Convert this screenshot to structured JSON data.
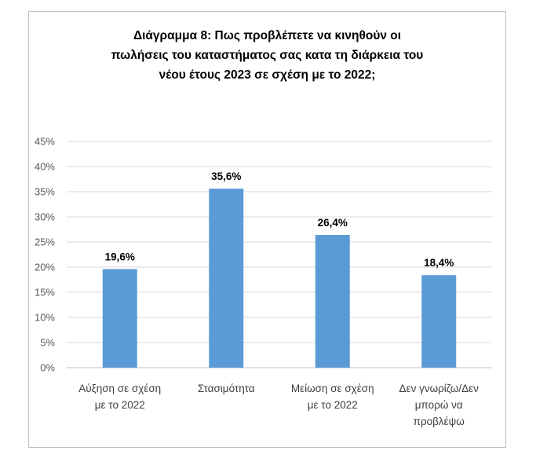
{
  "chart_data": {
    "type": "bar",
    "title_lines": [
      "Διάγραμμα 8: Πως προβλέπετε να κινηθούν οι",
      "πωλήσεις του καταστήματος σας κατα τη διάρκεια του",
      "νέου έτους 2023 σε σχέση με το 2022;"
    ],
    "categories": [
      [
        "Αύξηση σε σχέση",
        "με το 2022"
      ],
      [
        "Στασιμότητα"
      ],
      [
        "Μείωση σε σχέση",
        "με το 2022"
      ],
      [
        "Δεν γνωρίζω/Δεν",
        "μπορώ να",
        "προβλέψω"
      ]
    ],
    "values": [
      19.6,
      35.6,
      26.4,
      18.4
    ],
    "data_labels": [
      "19,6%",
      "35,6%",
      "26,4%",
      "18,4%"
    ],
    "y_ticks": [
      "0%",
      "5%",
      "10%",
      "15%",
      "20%",
      "25%",
      "30%",
      "35%",
      "40%",
      "45%"
    ],
    "ylim": [
      0,
      45
    ],
    "grid": true,
    "legend": "none",
    "bar_color": "#5b9bd5",
    "grid_color": "#d9d9d9"
  }
}
